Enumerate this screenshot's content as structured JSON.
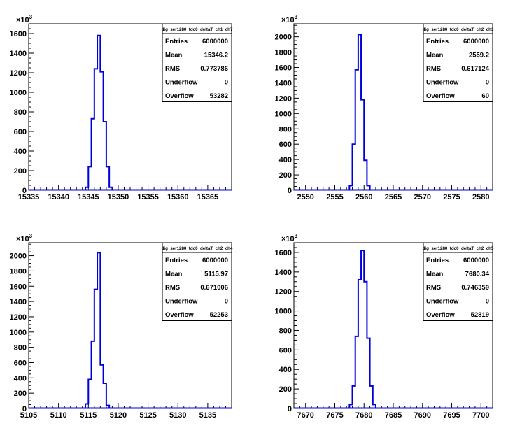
{
  "chart_data": [
    {
      "type": "histogram",
      "title": "dig_ser1280_tdc0_deltaT_ch1_ch7",
      "xlim": [
        15335,
        15369
      ],
      "xticks": [
        15335,
        15340,
        15345,
        15350,
        15355,
        15360,
        15365
      ],
      "ylim": [
        0,
        1700
      ],
      "yticks": [
        0,
        200,
        400,
        600,
        800,
        1000,
        1200,
        1400,
        1600
      ],
      "yexp": "3",
      "line_color": "#0000dd",
      "bins": [
        {
          "x0": 15344.5,
          "x1": 15345.0,
          "y": 30
        },
        {
          "x0": 15345.0,
          "x1": 15345.5,
          "y": 240
        },
        {
          "x0": 15345.5,
          "x1": 15346.0,
          "y": 730
        },
        {
          "x0": 15346.0,
          "x1": 15346.5,
          "y": 1240
        },
        {
          "x0": 15346.5,
          "x1": 15347.0,
          "y": 1580
        },
        {
          "x0": 15347.0,
          "x1": 15347.5,
          "y": 1210
        },
        {
          "x0": 15347.5,
          "x1": 15348.0,
          "y": 700
        },
        {
          "x0": 15348.0,
          "x1": 15348.5,
          "y": 240
        },
        {
          "x0": 15348.5,
          "x1": 15349.0,
          "y": 30
        }
      ],
      "stats": {
        "Entries": "6000000",
        "Mean": "15346.2",
        "RMS": "0.773786",
        "Underflow": "0",
        "Overflow": "53282"
      }
    },
    {
      "type": "histogram",
      "title": "dig_ser1280_tdc0_deltaT_ch2_ch3",
      "xlim": [
        2548,
        2582
      ],
      "xticks": [
        2550,
        2555,
        2560,
        2565,
        2570,
        2575,
        2580
      ],
      "ylim": [
        0,
        2170
      ],
      "yticks": [
        0,
        200,
        400,
        600,
        800,
        1000,
        1200,
        1400,
        1600,
        1800,
        2000
      ],
      "yexp": "3",
      "line_color": "#0000dd",
      "bins": [
        {
          "x0": 2557.5,
          "x1": 2558.0,
          "y": 60
        },
        {
          "x0": 2558.0,
          "x1": 2558.5,
          "y": 600
        },
        {
          "x0": 2558.5,
          "x1": 2559.0,
          "y": 1570
        },
        {
          "x0": 2559.0,
          "x1": 2559.5,
          "y": 2030
        },
        {
          "x0": 2559.5,
          "x1": 2560.0,
          "y": 1180
        },
        {
          "x0": 2560.0,
          "x1": 2560.5,
          "y": 390
        },
        {
          "x0": 2560.5,
          "x1": 2561.0,
          "y": 60
        }
      ],
      "stats": {
        "Entries": "6000000",
        "Mean": "2559.2",
        "RMS": "0.617124",
        "Underflow": "0",
        "Overflow": "60"
      }
    },
    {
      "type": "histogram",
      "title": "dig_ser1280_tdc0_deltaT_ch2_ch4",
      "xlim": [
        5105,
        5139
      ],
      "xticks": [
        5105,
        5110,
        5115,
        5120,
        5125,
        5130,
        5135
      ],
      "ylim": [
        0,
        2170
      ],
      "yticks": [
        0,
        200,
        400,
        600,
        800,
        1000,
        1200,
        1400,
        1600,
        1800,
        2000
      ],
      "yexp": "3",
      "line_color": "#0000dd",
      "bins": [
        {
          "x0": 5114.5,
          "x1": 5115.0,
          "y": 60
        },
        {
          "x0": 5115.0,
          "x1": 5115.5,
          "y": 380
        },
        {
          "x0": 5115.5,
          "x1": 5116.0,
          "y": 880
        },
        {
          "x0": 5116.0,
          "x1": 5116.5,
          "y": 1560
        },
        {
          "x0": 5116.5,
          "x1": 5117.0,
          "y": 2040
        },
        {
          "x0": 5117.0,
          "x1": 5117.5,
          "y": 570
        },
        {
          "x0": 5117.5,
          "x1": 5118.0,
          "y": 330
        },
        {
          "x0": 5118.0,
          "x1": 5118.5,
          "y": 40
        }
      ],
      "stats": {
        "Entries": "6000000",
        "Mean": "5115.97",
        "RMS": "0.671006",
        "Underflow": "0",
        "Overflow": "52253"
      }
    },
    {
      "type": "histogram",
      "title": "dig_ser1280_tdc0_deltaT_ch2_ch5",
      "xlim": [
        7668,
        7702
      ],
      "xticks": [
        7670,
        7675,
        7680,
        7685,
        7690,
        7695,
        7700
      ],
      "ylim": [
        0,
        1700
      ],
      "yticks": [
        0,
        200,
        400,
        600,
        800,
        1000,
        1200,
        1400,
        1600
      ],
      "yexp": "3",
      "line_color": "#0000dd",
      "bins": [
        {
          "x0": 7677.5,
          "x1": 7678.0,
          "y": 40
        },
        {
          "x0": 7678.0,
          "x1": 7678.5,
          "y": 230
        },
        {
          "x0": 7678.5,
          "x1": 7679.0,
          "y": 740
        },
        {
          "x0": 7679.0,
          "x1": 7679.5,
          "y": 1320
        },
        {
          "x0": 7679.5,
          "x1": 7680.0,
          "y": 1620
        },
        {
          "x0": 7680.0,
          "x1": 7680.5,
          "y": 1300
        },
        {
          "x0": 7680.5,
          "x1": 7681.0,
          "y": 720
        },
        {
          "x0": 7681.0,
          "x1": 7681.5,
          "y": 230
        },
        {
          "x0": 7681.5,
          "x1": 7682.0,
          "y": 40
        }
      ],
      "stats": {
        "Entries": "6000000",
        "Mean": "7680.34",
        "RMS": "0.746359",
        "Underflow": "0",
        "Overflow": "52819"
      }
    }
  ]
}
